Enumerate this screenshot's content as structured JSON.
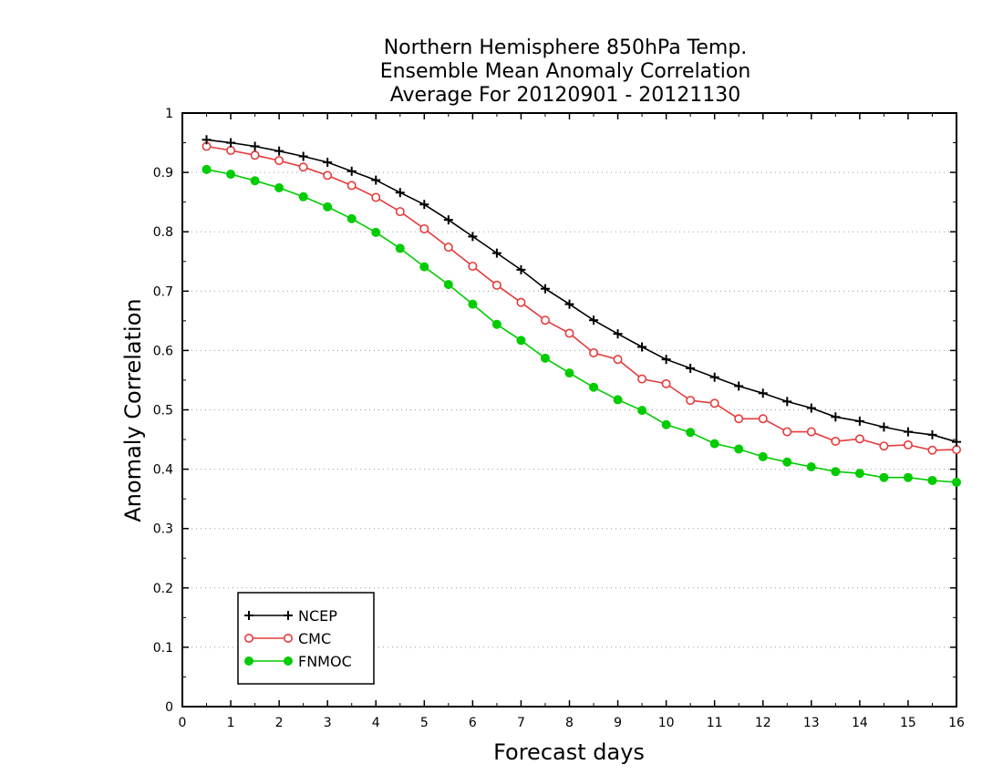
{
  "chart_data": {
    "type": "line",
    "title": [
      "Northern Hemisphere 850hPa Temp.",
      "Ensemble Mean Anomaly Correlation",
      "Average For 20120901 - 20121130"
    ],
    "xlabel": "Forecast days",
    "ylabel": "Anomaly Correlation",
    "xlim": [
      0,
      16
    ],
    "ylim": [
      0,
      1
    ],
    "xticks": [
      "0",
      "1",
      "2",
      "3",
      "4",
      "5",
      "6",
      "7",
      "8",
      "9",
      "10",
      "11",
      "12",
      "13",
      "14",
      "15",
      "16"
    ],
    "yticks": [
      "0",
      "0.1",
      "0.2",
      "0.3",
      "0.4",
      "0.5",
      "0.6",
      "0.7",
      "0.8",
      "0.9",
      "1"
    ],
    "grid": "horizontal dotted",
    "legend_position": "bottom-left",
    "x": [
      0.5,
      1,
      1.5,
      2,
      2.5,
      3,
      3.5,
      4,
      4.5,
      5,
      5.5,
      6,
      6.5,
      7,
      7.5,
      8,
      8.5,
      9,
      9.5,
      10,
      10.5,
      11,
      11.5,
      12,
      12.5,
      13,
      13.5,
      14,
      14.5,
      15,
      15.5,
      16
    ],
    "series": [
      {
        "name": "NCEP",
        "color": "#000000",
        "marker": "plus",
        "values": [
          0.955,
          0.95,
          0.944,
          0.936,
          0.927,
          0.917,
          0.902,
          0.887,
          0.866,
          0.846,
          0.82,
          0.792,
          0.764,
          0.736,
          0.704,
          0.678,
          0.651,
          0.628,
          0.606,
          0.585,
          0.57,
          0.555,
          0.54,
          0.528,
          0.514,
          0.503,
          0.488,
          0.481,
          0.471,
          0.463,
          0.458,
          0.446
        ]
      },
      {
        "name": "CMC",
        "color": "#e53b3b",
        "marker": "open-circle",
        "values": [
          0.944,
          0.937,
          0.929,
          0.92,
          0.909,
          0.895,
          0.878,
          0.858,
          0.834,
          0.805,
          0.774,
          0.742,
          0.71,
          0.681,
          0.651,
          0.629,
          0.596,
          0.585,
          0.552,
          0.544,
          0.516,
          0.511,
          0.485,
          0.485,
          0.463,
          0.463,
          0.447,
          0.451,
          0.439,
          0.441,
          0.432,
          0.433
        ]
      },
      {
        "name": "FNMOC",
        "color": "#00cc00",
        "marker": "filled-circle",
        "values": [
          0.905,
          0.897,
          0.886,
          0.874,
          0.859,
          0.842,
          0.822,
          0.799,
          0.772,
          0.741,
          0.711,
          0.678,
          0.644,
          0.617,
          0.587,
          0.562,
          0.538,
          0.517,
          0.499,
          0.475,
          0.462,
          0.443,
          0.434,
          0.421,
          0.412,
          0.404,
          0.396,
          0.393,
          0.386,
          0.386,
          0.381,
          0.378
        ]
      }
    ]
  }
}
